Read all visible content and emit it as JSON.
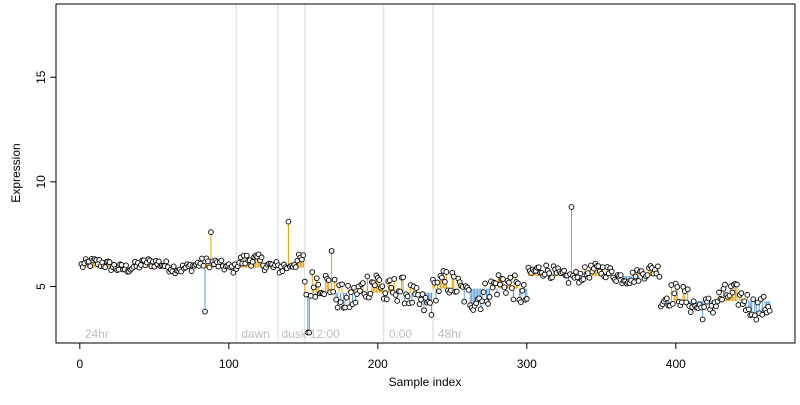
{
  "chart_data": {
    "type": "scatter",
    "xlabel": "Sample index",
    "ylabel": "Expression",
    "xlim": [
      -16,
      480
    ],
    "ylim": [
      2.3,
      18.5
    ],
    "x_ticks": [
      0,
      100,
      200,
      300,
      400
    ],
    "y_ticks": [
      5,
      10,
      15
    ],
    "baseline": 5.9,
    "colors": {
      "above": "#e69f00",
      "below": "#5b9bd5",
      "divider": "#d9d9d9",
      "phase_text": "#bdbdbd",
      "point_fill": "#ffffff",
      "point_stroke": "#000000"
    },
    "grid": false,
    "phase_dividers": [
      105,
      133,
      151,
      204,
      237
    ],
    "phase_labels": [
      {
        "text": "24hr",
        "x": 2
      },
      {
        "text": "dawn",
        "x": 107
      },
      {
        "text": "dusk",
        "x": 134
      },
      {
        "text": "12:00",
        "x": 153
      },
      {
        "text": "0:00",
        "x": 206
      },
      {
        "text": "48hr",
        "x": 239
      }
    ],
    "segments": [
      {
        "x0": 1,
        "x1": 104,
        "base": 5.9,
        "center": 6.0,
        "amp": 0.3
      },
      {
        "x0": 105,
        "x1": 150,
        "base": 5.9,
        "center": 6.1,
        "amp": 0.4
      },
      {
        "x0": 151,
        "x1": 203,
        "base": 4.7,
        "center": 4.8,
        "amp": 0.9
      },
      {
        "x0": 204,
        "x1": 236,
        "base": 4.7,
        "center": 4.5,
        "amp": 0.8
      },
      {
        "x0": 237,
        "x1": 300,
        "base": 4.9,
        "center": 4.8,
        "amp": 0.8
      },
      {
        "x0": 301,
        "x1": 389,
        "base": 5.5,
        "center": 5.6,
        "amp": 0.4
      },
      {
        "x0": 390,
        "x1": 463,
        "base": 4.3,
        "center": 4.3,
        "amp": 0.7
      }
    ],
    "points_override": [
      {
        "x": 88,
        "y": 7.6
      },
      {
        "x": 140,
        "y": 8.1
      },
      {
        "x": 330,
        "y": 8.8
      },
      {
        "x": 153,
        "y": 2.8
      },
      {
        "x": 154,
        "y": 2.8
      },
      {
        "x": 169,
        "y": 6.7
      },
      {
        "x": 84,
        "y": 3.8
      }
    ]
  }
}
